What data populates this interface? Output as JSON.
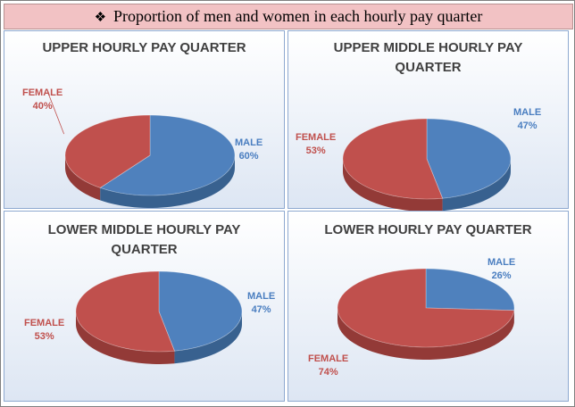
{
  "header": {
    "bullet": "❖",
    "title": "Proportion of men and women in each hourly pay quarter"
  },
  "colors": {
    "male": "#4f81bd",
    "female": "#c0504d",
    "male_side": "#38618f",
    "female_side": "#933a37"
  },
  "chart_data": [
    {
      "type": "pie",
      "title": "UPPER HOURLY PAY QUARTER",
      "slices": [
        {
          "name": "FEMALE",
          "value": 40,
          "label": "40%"
        },
        {
          "name": "MALE",
          "value": 60,
          "label": "60%"
        }
      ]
    },
    {
      "type": "pie",
      "title": "UPPER MIDDLE HOURLY PAY QUARTER",
      "slices": [
        {
          "name": "FEMALE",
          "value": 53,
          "label": "53%"
        },
        {
          "name": "MALE",
          "value": 47,
          "label": "47%"
        }
      ]
    },
    {
      "type": "pie",
      "title": "LOWER MIDDLE HOURLY PAY QUARTER",
      "slices": [
        {
          "name": "FEMALE",
          "value": 53,
          "label": "53%"
        },
        {
          "name": "MALE",
          "value": 47,
          "label": "47%"
        }
      ]
    },
    {
      "type": "pie",
      "title": "LOWER HOURLY PAY QUARTER",
      "slices": [
        {
          "name": "FEMALE",
          "value": 74,
          "label": "74%"
        },
        {
          "name": "MALE",
          "value": 26,
          "label": "26%"
        }
      ]
    }
  ]
}
